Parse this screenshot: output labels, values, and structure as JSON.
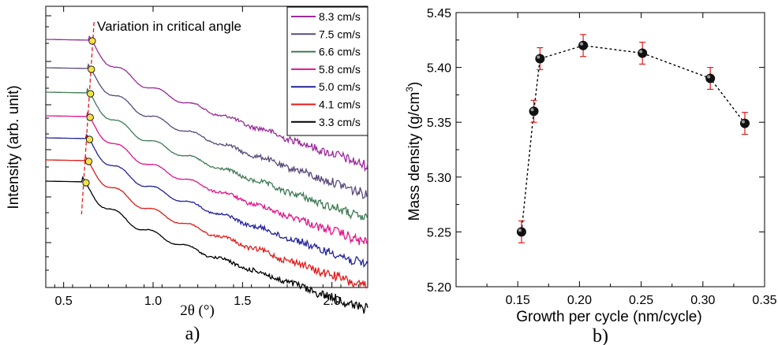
{
  "panels": {
    "a_label": "a)",
    "b_label": "b)"
  },
  "chart_data": [
    {
      "type": "line",
      "panel": "a",
      "xlabel": "2θ (°)",
      "ylabel": "Intensity (arb. unit)",
      "xlim": [
        0.4,
        2.2
      ],
      "xticks": [
        0.5,
        1.0,
        1.5,
        2.0
      ],
      "xtick_labels": [
        "0.5",
        "1.0",
        "1.5",
        "2.0"
      ],
      "y_log_scale": true,
      "annotation": "Variation in critical angle",
      "legend_position": "top-right",
      "series": [
        {
          "name": "8.3 cm/s",
          "color": "#9b2a9b",
          "critical_angle": 0.66
        },
        {
          "name": "7.5 cm/s",
          "color": "#5a4a7a",
          "critical_angle": 0.655
        },
        {
          "name": "6.6 cm/s",
          "color": "#3f7a55",
          "critical_angle": 0.65
        },
        {
          "name": "5.8 cm/s",
          "color": "#e0158a",
          "critical_angle": 0.648
        },
        {
          "name": "5.0 cm/s",
          "color": "#22229a",
          "critical_angle": 0.645
        },
        {
          "name": "4.1 cm/s",
          "color": "#e01b1b",
          "critical_angle": 0.64
        },
        {
          "name": "3.3 cm/s",
          "color": "#000000",
          "critical_angle": 0.625
        }
      ]
    },
    {
      "type": "scatter",
      "panel": "b",
      "xlabel": "Growth per cycle (nm/cycle)",
      "ylabel_main": "Mass density (g/cm",
      "ylabel_sup": "3",
      "ylabel_end": ")",
      "xlim": [
        0.1,
        0.35
      ],
      "ylim": [
        5.2,
        5.45
      ],
      "xticks": [
        0.15,
        0.2,
        0.25,
        0.3,
        0.35
      ],
      "xtick_labels": [
        "0.15",
        "0.20",
        "0.25",
        "0.30",
        "0.35"
      ],
      "yticks": [
        5.2,
        5.25,
        5.3,
        5.35,
        5.4,
        5.45
      ],
      "ytick_labels": [
        "5.20",
        "5.25",
        "5.30",
        "5.35",
        "5.40",
        "5.45"
      ],
      "x": [
        0.153,
        0.163,
        0.168,
        0.203,
        0.251,
        0.306,
        0.334
      ],
      "y": [
        5.25,
        5.36,
        5.408,
        5.42,
        5.413,
        5.39,
        5.349
      ],
      "errors": [
        0.01,
        0.01,
        0.01,
        0.01,
        0.01,
        0.01,
        0.01
      ],
      "line_style": "dashed",
      "marker_color": "#111111",
      "errorbar_color": "#e01b1b"
    }
  ]
}
